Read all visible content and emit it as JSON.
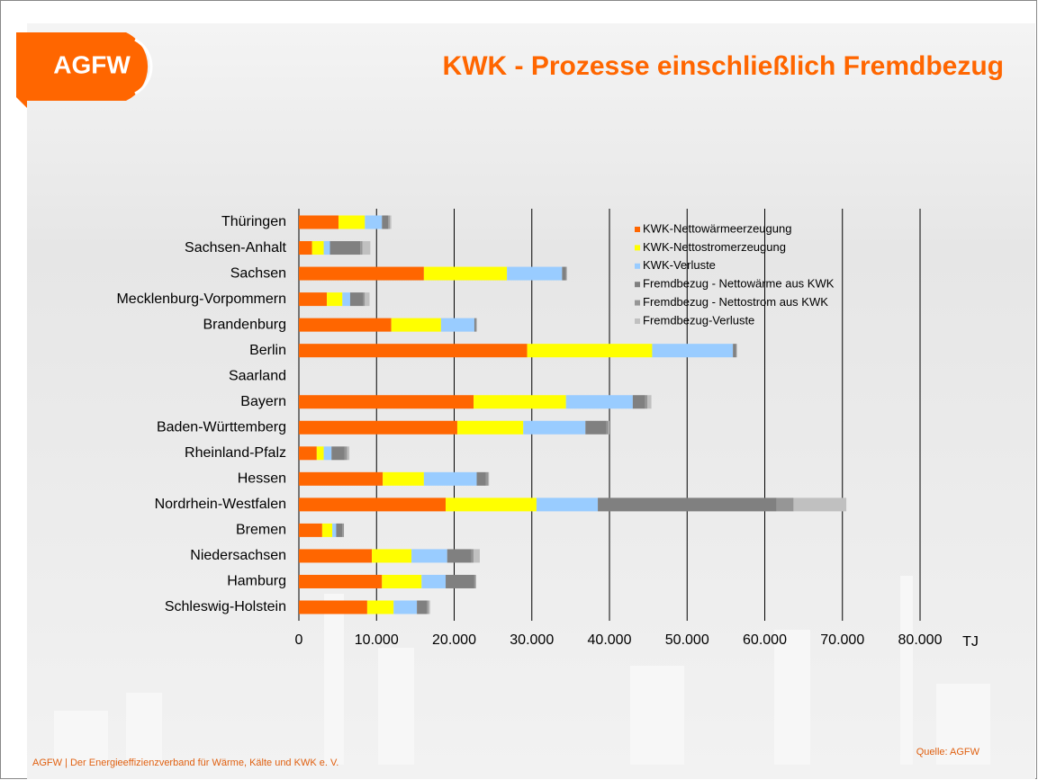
{
  "logo": "AGFW",
  "footer": "AGFW | Der Energieeffizienzverband für Wärme, Kälte und KWK e. V.",
  "source": "Quelle:  AGFW",
  "chart_data": {
    "type": "stacked-barh",
    "title": "KWK - Prozesse einschließlich Fremdbezug",
    "xlabel": "TJ",
    "categories": [
      "Thüringen",
      "Sachsen-Anhalt",
      "Sachsen",
      "Mecklenburg-Vorpommern",
      "Brandenburg",
      "Berlin",
      "Saarland",
      "Bayern",
      "Baden-Württemberg",
      "Rheinland-Pfalz",
      "Hessen",
      "Nordrhein-Westfalen",
      "Bremen",
      "Niedersachsen",
      "Hamburg",
      "Schleswig-Holstein"
    ],
    "series": [
      {
        "name": "KWK-Nettowärmeerzeugung",
        "color": "#ff6600",
        "values": [
          5100,
          1700,
          16100,
          3600,
          11900,
          29400,
          0,
          22500,
          20400,
          2300,
          10800,
          18900,
          3000,
          9400,
          10700,
          8800
        ]
      },
      {
        "name": "KWK-Nettostromerzeugung",
        "color": "#ffff00",
        "values": [
          3400,
          1500,
          10700,
          2000,
          6400,
          16100,
          0,
          11900,
          8500,
          900,
          5300,
          11700,
          1300,
          5100,
          5100,
          3400
        ]
      },
      {
        "name": "KWK-Verluste",
        "color": "#99ccff",
        "values": [
          2200,
          800,
          7100,
          1000,
          4300,
          10400,
          0,
          8600,
          8000,
          1000,
          6800,
          7900,
          500,
          4600,
          3100,
          3000
        ]
      },
      {
        "name": "Fremdbezug - Nettowärme aus KWK",
        "color": "#808080",
        "values": [
          800,
          3900,
          500,
          1700,
          200,
          400,
          0,
          1600,
          2700,
          1700,
          1200,
          23000,
          800,
          3100,
          3700,
          1300
        ]
      },
      {
        "name": "Fremdbezug - Nettostrom aus KWK",
        "color": "#969696",
        "values": [
          200,
          300,
          100,
          200,
          100,
          100,
          0,
          300,
          300,
          300,
          300,
          2200,
          200,
          300,
          200,
          200
        ]
      },
      {
        "name": "Fremdbezug-Verluste",
        "color": "#c0c0c0",
        "values": [
          200,
          1000,
          0,
          600,
          0,
          0,
          0,
          500,
          100,
          300,
          100,
          6800,
          0,
          800,
          0,
          200
        ]
      }
    ],
    "xlim": [
      0,
      80000
    ],
    "xticks": [
      0,
      {
        "value": 10000,
        "label": "10.000"
      },
      {
        "value": 20000,
        "label": "20.000"
      },
      {
        "value": 30000,
        "label": "30.000"
      },
      {
        "value": 40000,
        "label": "40.000"
      },
      {
        "value": 50000,
        "label": "50.000"
      },
      {
        "value": 60000,
        "label": "60.000"
      },
      {
        "value": 70000,
        "label": "70.000"
      },
      {
        "value": 80000,
        "label": "80.000"
      }
    ],
    "grid": true,
    "legend": "upper-right"
  }
}
